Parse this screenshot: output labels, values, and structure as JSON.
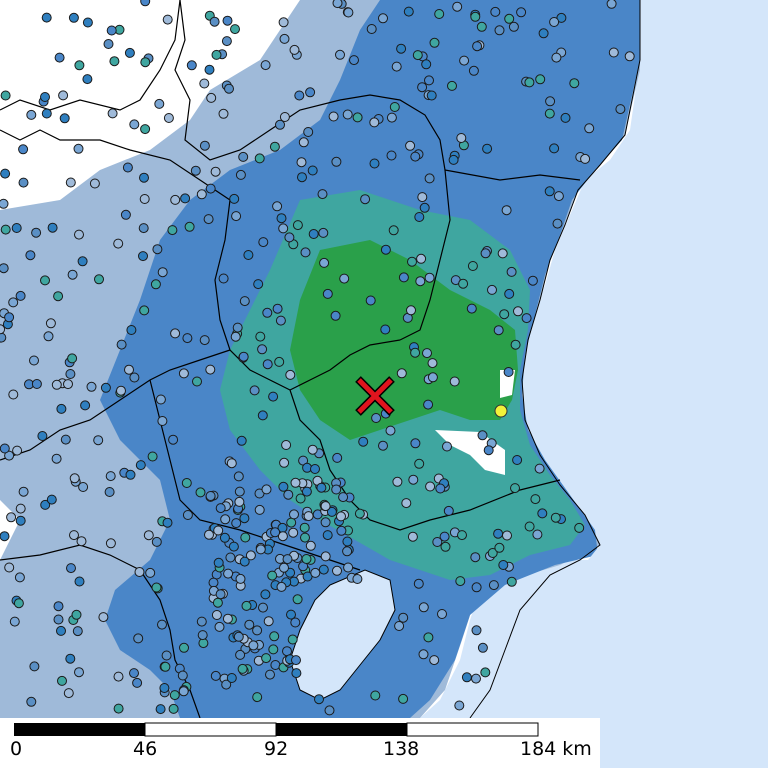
{
  "map": {
    "colors": {
      "sea": "#d4e6fa",
      "no_data": "#ffffff",
      "intensity_0": "#9fbad9",
      "intensity_1": "#4a86c8",
      "intensity_2": "#3fa6a0",
      "intensity_3": "#2aa04a",
      "intensity_4": "#f2f23a",
      "station_fill": "#5a8fc4",
      "epicenter": "#e0141e"
    },
    "legend_marker": "epicenter-cross-icon"
  },
  "scale_bar": {
    "labels": [
      "0",
      "46",
      "92",
      "138",
      "184 km"
    ]
  }
}
